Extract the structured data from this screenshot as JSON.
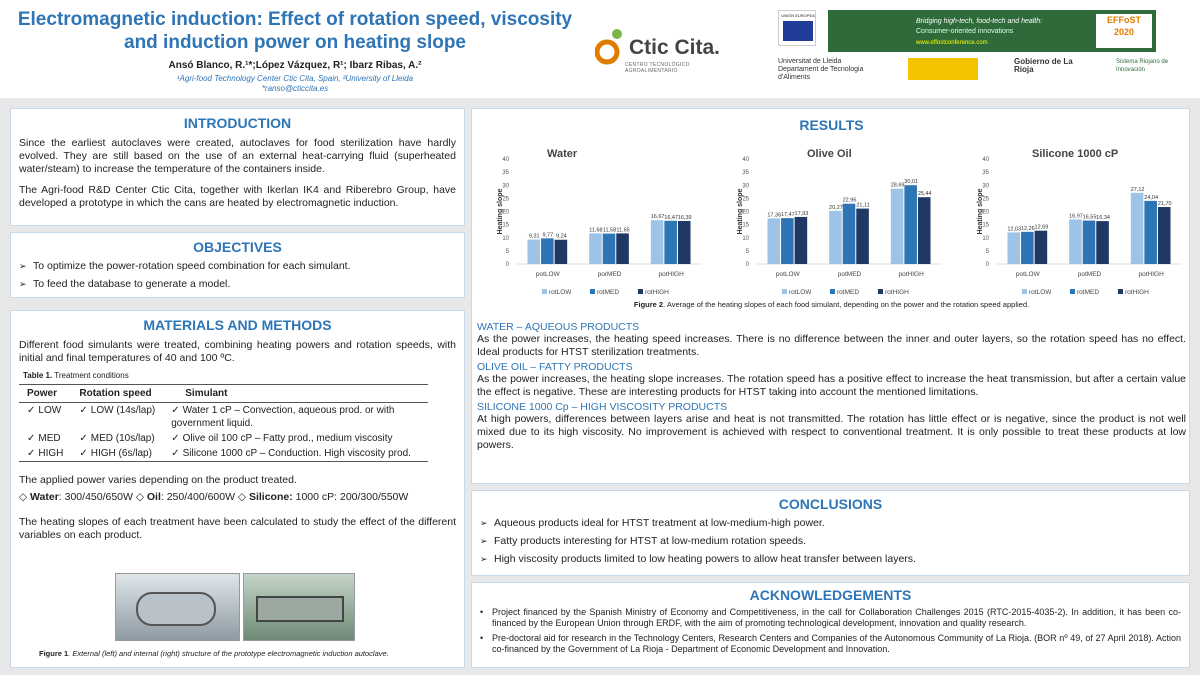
{
  "header": {
    "title": "Electromagnetic induction: Effect of rotation speed, viscosity and induction power on heating slope",
    "authors": "Ansó Blanco, R.¹*;López Vázquez, R¹; Ibarz Ribas, A.²",
    "affiliation": "¹Agri-food Technology Center Ctic Cita, Spain, ²University of Lleida",
    "email": "*ranso@cticcita.es"
  },
  "logos": {
    "ctic": "Ctic Cita.",
    "ctic_sub": "CENTRO TECNOLÓGICO AGROALIMENTARIO",
    "eu": "UNIÓN EUROPEA",
    "banner_line1": "Bridging high-tech, food-tech and health:",
    "banner_line2": "Consumer-oriented innovations",
    "effost": "EFFoST 2020",
    "url": "www.effostconference.com",
    "lleida": "Universitat de Lleida Departament de Tecnologia d'Aliments",
    "rioja": "Gobierno de La Rioja",
    "sistema": "Sistema Riojano de Innovación"
  },
  "introduction": {
    "heading": "INTRODUCTION",
    "p1": "Since the earliest autoclaves were created, autoclaves for food sterilization have hardly evolved. They are still based on the use of an external heat-carrying fluid (superheated water/steam) to increase the temperature of the containers inside.",
    "p2": "The Agri-food R&D Center Ctic Cita, together with Ikerlan IK4 and Riberebro Group, have developed a prototype in which the cans are heated by electromagnetic induction."
  },
  "objectives": {
    "heading": "OBJECTIVES",
    "items": [
      "To optimize the power-rotation speed combination for each simulant.",
      "To feed the database to generate a model."
    ]
  },
  "methods": {
    "heading": "MATERIALS AND METHODS",
    "p1": "Different food simulants were treated, combining heating powers and rotation speeds, with initial and final temperatures of 40 and 100 ºC.",
    "table_caption_bold": "Table 1.",
    "table_caption": " Treatment conditions",
    "columns": [
      "Power",
      "Rotation speed",
      "Simulant"
    ],
    "rows": [
      {
        "power": "LOW",
        "speed": "LOW (14s/lap)",
        "sim": "Water 1 cP  – Convection, aqueous prod. or with government liquid."
      },
      {
        "power": "MED",
        "speed": "MED (10s/lap)",
        "sim": "Olive oil 100 cP – Fatty prod., medium viscosity"
      },
      {
        "power": "HIGH",
        "speed": "HIGH (6s/lap)",
        "sim": "Silicone 1000 cP – Conduction. High viscosity prod."
      }
    ],
    "p2": "The applied power varies depending on the product treated.",
    "water_label": "Water",
    "water_val": ": 300/450/650W",
    "oil_label": "Oil",
    "oil_val": ": 250/400/600W",
    "sil_label": "Silicone:",
    "sil_val": " 1000 cP: 200/300/550W",
    "p3": "The heating slopes of each treatment have been calculated to study the effect of the different variables on each product.",
    "fig1_bold": "Figure 1",
    "fig1": ". External (left) and internal (right) structure of the prototype electromagnetic induction autoclave."
  },
  "results": {
    "heading": "RESULTS",
    "fig2_bold": "Figure 2",
    "fig2": ". Average of the heating slopes of each food simulant, depending on the power and the rotation speed applied.",
    "water_h": "WATER – AQUEOUS PRODUCTS",
    "water_t": "As the power increases, the heating speed increases. There is no difference between the inner and outer layers, so the rotation speed has no effect. Ideal products for HTST sterilization treatments.",
    "oil_h": "OLIVE OIL – FATTY PRODUCTS",
    "oil_t": "As the power increases, the heating slope increases. The rotation speed has a positive effect to increase the heat transmission, but after a certain value the effect is negative. These are interesting products for HTST taking into account the mentioned limitations.",
    "sil_h": "SILICONE 1000 Cp – HIGH VISCOSITY PRODUCTS",
    "sil_t": "At high powers, differences between layers arise and heat is not transmitted. The rotation has little effect or is negative, since the product is not well mixed due to its high viscosity. No improvement is achieved with respect to conventional treatment. It is only possible to treat these products at low powers."
  },
  "conclusions": {
    "heading": "CONCLUSIONS",
    "items": [
      "Aqueous products ideal for HTST treatment at low-medium-high power.",
      "Fatty products interesting for HTST at low-medium rotation speeds.",
      "High viscosity products limited to low heating powers to allow heat transfer between layers."
    ]
  },
  "ack": {
    "heading": "ACKNOWLEDGEMENTS",
    "items": [
      "Project financed by the Spanish Ministry of Economy and Competitiveness, in the call for Collaboration Challenges 2015 (RTC-2015-4035-2). In addition, it has been co-financed by the European Union through ERDF, with the aim of promoting technological development, innovation and quality research.",
      "Pre-doctoral aid for research in the Technology Centers, Research Centers and Companies of the Autonomous Community of La Rioja.  (BOR nº 49, of 27 April 2018). Action co-financed by the Government of La Rioja - Department of Economic Development and Innovation."
    ]
  },
  "colors": {
    "accent": "#2e75b6",
    "s1": "#9dc3e6",
    "s2": "#2e75b6",
    "s3": "#1f3864"
  },
  "chart_data": [
    {
      "type": "bar",
      "title": "Water",
      "ylabel": "Heating slope",
      "ylim": [
        0,
        40
      ],
      "categories": [
        "potLOW",
        "porMED",
        "potHIGH"
      ],
      "series": [
        {
          "name": "rotLOW",
          "values": [
            9.31,
            11.68,
            16.67
          ],
          "labels": [
            "9,31",
            "11,68",
            "16,67"
          ]
        },
        {
          "name": "rotMED",
          "values": [
            9.77,
            11.58,
            16.47
          ],
          "labels": [
            "9,77",
            "11,58",
            "16,47"
          ]
        },
        {
          "name": "rotHIGH",
          "values": [
            9.24,
            11.65,
            16.39
          ],
          "labels": [
            "9,24",
            "11,65",
            "16,39"
          ]
        }
      ],
      "legend": "bottom"
    },
    {
      "type": "bar",
      "title": "Olive Oil",
      "ylabel": "Heating slope",
      "ylim": [
        0,
        40
      ],
      "categories": [
        "potLOW",
        "potMED",
        "potHIGH"
      ],
      "series": [
        {
          "name": "rotLOW",
          "values": [
            17.36,
            20.27,
            28.69
          ],
          "labels": [
            "17,36",
            "20,27",
            "28,69"
          ]
        },
        {
          "name": "rotMED",
          "values": [
            17.47,
            22.96,
            30.01
          ],
          "labels": [
            "17,47",
            "22,96",
            "30,01"
          ]
        },
        {
          "name": "rotHIGH",
          "values": [
            17.93,
            21.11,
            25.44
          ],
          "labels": [
            "17,93",
            "21,11",
            "25,44"
          ]
        }
      ],
      "legend": "bottom"
    },
    {
      "type": "bar",
      "title": "Silicone 1000 cP",
      "ylabel": "Heating slope",
      "ylim": [
        0,
        40
      ],
      "categories": [
        "potLOW",
        "potMED",
        "potHIGH"
      ],
      "series": [
        {
          "name": "rotLOW",
          "values": [
            12.03,
            16.97,
            27.12
          ],
          "labels": [
            "12,03",
            "16,97",
            "27,12"
          ]
        },
        {
          "name": "rotMED",
          "values": [
            12.26,
            16.55,
            24.04
          ],
          "labels": [
            "12,26",
            "16,55",
            "24,04"
          ]
        },
        {
          "name": "rotHIGH",
          "values": [
            12.69,
            16.34,
            21.7
          ],
          "labels": [
            "12,69",
            "16,34",
            "21,70"
          ]
        }
      ],
      "legend": "bottom"
    }
  ]
}
